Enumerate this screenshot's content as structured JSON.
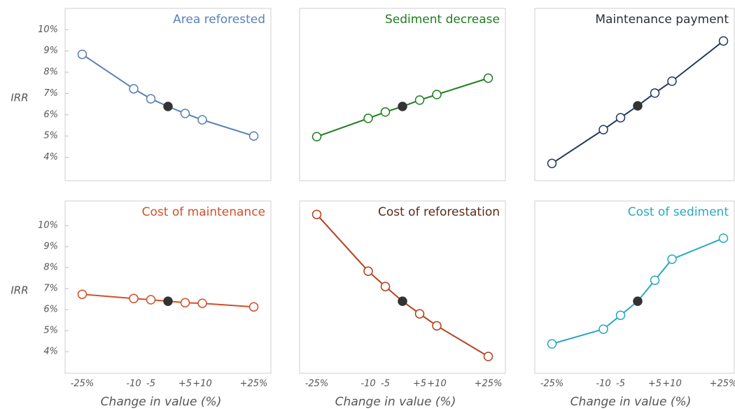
{
  "chart_data": [
    {
      "type": "line",
      "title": "Area reforested",
      "title_color": "#5a80b8",
      "ylabel": "IRR",
      "x": [
        -25,
        -10,
        -5,
        0,
        5,
        10,
        25
      ],
      "values": [
        8.84,
        7.22,
        6.75,
        6.39,
        6.06,
        5.76,
        5.0
      ],
      "color": "#5a80b8",
      "filled_x": 0,
      "filled_color": "#333333",
      "xlim": [
        -30,
        30
      ],
      "ylim": [
        2.9,
        11.0
      ],
      "yticks": [
        {
          "value": 4,
          "label": "4%"
        },
        {
          "value": 5,
          "label": "5%"
        },
        {
          "value": 6,
          "label": "6%"
        },
        {
          "value": 7,
          "label": "7%"
        },
        {
          "value": 8,
          "label": "8%"
        },
        {
          "value": 9,
          "label": "9%"
        },
        {
          "value": 10,
          "label": "10%"
        }
      ]
    },
    {
      "type": "line",
      "title": "Sediment decrease",
      "title_color": "#1e7d1e",
      "x": [
        -25,
        -10,
        -5,
        0,
        5,
        10,
        25
      ],
      "values": [
        4.97,
        5.83,
        6.13,
        6.39,
        6.69,
        6.95,
        7.72
      ],
      "color": "#1e7d1e",
      "filled_x": 0,
      "filled_color": "#333333",
      "xlim": [
        -30,
        30
      ],
      "ylim": [
        2.9,
        11.0
      ]
    },
    {
      "type": "line",
      "title": "Maintenance payment",
      "title_color": "#2a2f3a",
      "x": [
        -25,
        -10,
        -5,
        0,
        5,
        10,
        25
      ],
      "values": [
        3.71,
        5.3,
        5.86,
        6.42,
        7.02,
        7.58,
        9.47
      ],
      "color": "#253a5e",
      "filled_x": 0,
      "filled_color": "#333333",
      "xlim": [
        -30,
        30
      ],
      "ylim": [
        2.9,
        11.0
      ]
    },
    {
      "type": "line",
      "title": "Cost of maintenance",
      "title_color": "#d0502a",
      "ylabel": "IRR",
      "xlabel": "Change in value (%)",
      "x": [
        -25,
        -10,
        -5,
        0,
        5,
        10,
        25
      ],
      "values": [
        6.73,
        6.53,
        6.47,
        6.4,
        6.33,
        6.3,
        6.13
      ],
      "color": "#d0502a",
      "filled_x": 0,
      "filled_color": "#333333",
      "xlim": [
        -30,
        30
      ],
      "ylim": [
        2.97,
        11.17
      ],
      "yticks": [
        {
          "value": 4,
          "label": "4%"
        },
        {
          "value": 5,
          "label": "5%"
        },
        {
          "value": 6,
          "label": "6%"
        },
        {
          "value": 7,
          "label": "7%"
        },
        {
          "value": 8,
          "label": "8%"
        },
        {
          "value": 9,
          "label": "9%"
        },
        {
          "value": 10,
          "label": "10%"
        }
      ],
      "xticks": [
        {
          "value": -25,
          "label": "-25%"
        },
        {
          "value": -10,
          "label": "-10"
        },
        {
          "value": -5,
          "label": "-5"
        },
        {
          "value": 5,
          "label": "+5"
        },
        {
          "value": 10,
          "label": "+10"
        },
        {
          "value": 25,
          "label": "+25%"
        }
      ]
    },
    {
      "type": "line",
      "title": "Cost of reforestation",
      "title_color": "#5a2a1a",
      "xlabel": "Change in value (%)",
      "x": [
        -25,
        -10,
        -5,
        0,
        5,
        10,
        25
      ],
      "values": [
        10.53,
        7.83,
        7.1,
        6.4,
        5.8,
        5.23,
        3.77
      ],
      "color": "#b5401c",
      "filled_x": 0,
      "filled_color": "#333333",
      "xlim": [
        -30,
        30
      ],
      "ylim": [
        2.97,
        11.17
      ],
      "xticks": [
        {
          "value": -25,
          "label": "-25%"
        },
        {
          "value": -10,
          "label": "-10"
        },
        {
          "value": -5,
          "label": "-5"
        },
        {
          "value": 5,
          "label": "+5"
        },
        {
          "value": 10,
          "label": "+10"
        },
        {
          "value": 25,
          "label": "+25%"
        }
      ]
    },
    {
      "type": "line",
      "title": "Cost of sediment",
      "title_color": "#2aa8c0",
      "xlabel": "Change in value (%)",
      "x": [
        -25,
        -10,
        -5,
        0,
        5,
        10,
        25
      ],
      "values": [
        4.37,
        5.07,
        5.73,
        6.4,
        7.4,
        8.4,
        9.4
      ],
      "color": "#2aa8c0",
      "filled_x": 0,
      "filled_color": "#333333",
      "xlim": [
        -30,
        30
      ],
      "ylim": [
        2.97,
        11.17
      ],
      "xticks": [
        {
          "value": -25,
          "label": "-25%"
        },
        {
          "value": -10,
          "label": "-10"
        },
        {
          "value": -5,
          "label": "-5"
        },
        {
          "value": 5,
          "label": "+5"
        },
        {
          "value": 10,
          "label": "+10"
        },
        {
          "value": 25,
          "label": "+25%"
        }
      ]
    }
  ]
}
